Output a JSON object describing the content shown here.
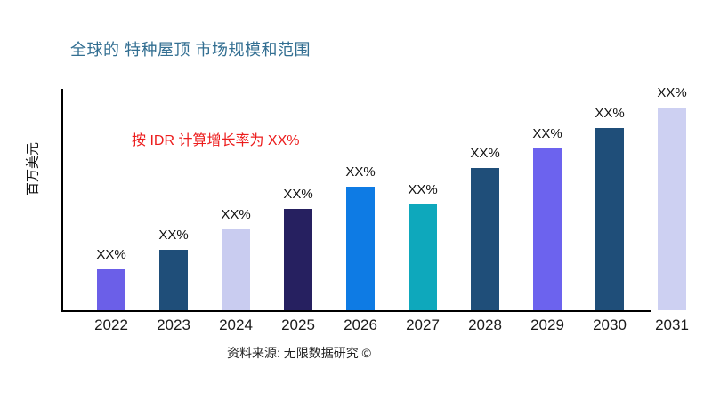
{
  "header": {
    "title": "全球的 特种屋顶 市场规模和范围"
  },
  "annotation": {
    "growth_note": "按 IDR 计算增长率为 XX%"
  },
  "footer": {
    "source": "资料来源: 无限数据研究 ©"
  },
  "colors": {
    "title": "#336F92",
    "annotation": "#EC1C1C",
    "axis": "#000000",
    "text": "#111111"
  },
  "chart_data": {
    "type": "bar",
    "title": "全球的 特种屋顶 市场规模和范围",
    "xlabel": "",
    "ylabel": "百万美元",
    "categories": [
      "2022",
      "2023",
      "2024",
      "2025",
      "2026",
      "2027",
      "2028",
      "2029",
      "2030",
      "2031"
    ],
    "values": [
      20,
      30,
      40,
      50,
      61,
      52,
      70,
      80,
      90,
      100
    ],
    "values_note": "relative bar heights as % of tallest bar; actual figures masked as XX% in source image",
    "bar_labels": [
      "XX%",
      "XX%",
      "XX%",
      "XX%",
      "XX%",
      "XX%",
      "XX%",
      "XX%",
      "XX%",
      "XX%"
    ],
    "bar_colors": [
      "#6B5FE8",
      "#1F4E79",
      "#C9CCF0",
      "#262060",
      "#0E7BE4",
      "#0EA8BC",
      "#1F4E79",
      "#6C63EE",
      "#1F4E79",
      "#CDD0F2"
    ],
    "annotation": "按 IDR 计算增长率为 XX%",
    "source": "资料来源: 无限数据研究 ©",
    "grid": false,
    "legend": false
  }
}
